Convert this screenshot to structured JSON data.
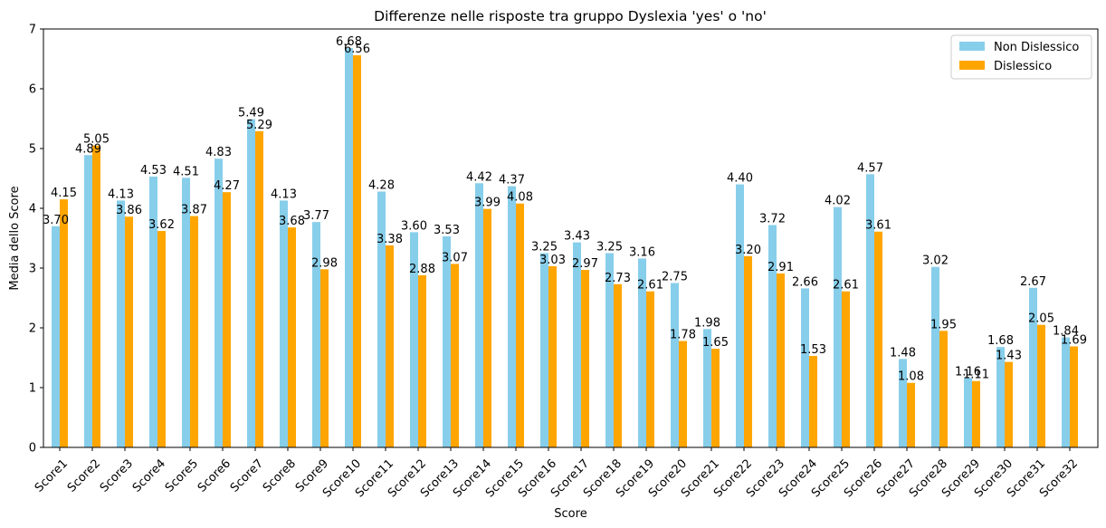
{
  "chart_data": {
    "type": "bar",
    "title": "Differenze nelle risposte tra gruppo Dyslexia 'yes' o 'no'",
    "xlabel": "Score",
    "ylabel": "Media dello Score",
    "ylim": [
      0,
      7
    ],
    "yticks": [
      0,
      1,
      2,
      3,
      4,
      5,
      6,
      7
    ],
    "grid": false,
    "legend_position": "top-right",
    "categories": [
      "Score1",
      "Score2",
      "Score3",
      "Score4",
      "Score5",
      "Score6",
      "Score7",
      "Score8",
      "Score9",
      "Score10",
      "Score11",
      "Score12",
      "Score13",
      "Score14",
      "Score15",
      "Score16",
      "Score17",
      "Score18",
      "Score19",
      "Score20",
      "Score21",
      "Score22",
      "Score23",
      "Score24",
      "Score25",
      "Score26",
      "Score27",
      "Score28",
      "Score29",
      "Score30",
      "Score31",
      "Score32"
    ],
    "series": [
      {
        "name": "Non Dislessico",
        "color": "#87ceeb",
        "values": [
          3.7,
          4.89,
          4.13,
          4.53,
          4.51,
          4.83,
          5.49,
          4.13,
          3.77,
          6.68,
          4.28,
          3.6,
          3.53,
          4.42,
          4.37,
          3.25,
          3.43,
          3.25,
          3.16,
          2.75,
          1.98,
          4.4,
          3.72,
          2.66,
          4.02,
          4.57,
          1.48,
          3.02,
          1.16,
          1.68,
          2.67,
          1.84
        ]
      },
      {
        "name": "Dislessico",
        "color": "#ffa500",
        "values": [
          4.15,
          5.05,
          3.86,
          3.62,
          3.87,
          4.27,
          5.29,
          3.68,
          2.98,
          6.56,
          3.38,
          2.88,
          3.07,
          3.99,
          4.08,
          3.03,
          2.97,
          2.73,
          2.61,
          1.78,
          1.65,
          3.2,
          2.91,
          1.53,
          2.61,
          3.61,
          1.08,
          1.95,
          1.11,
          1.43,
          2.05,
          1.69
        ]
      }
    ]
  }
}
